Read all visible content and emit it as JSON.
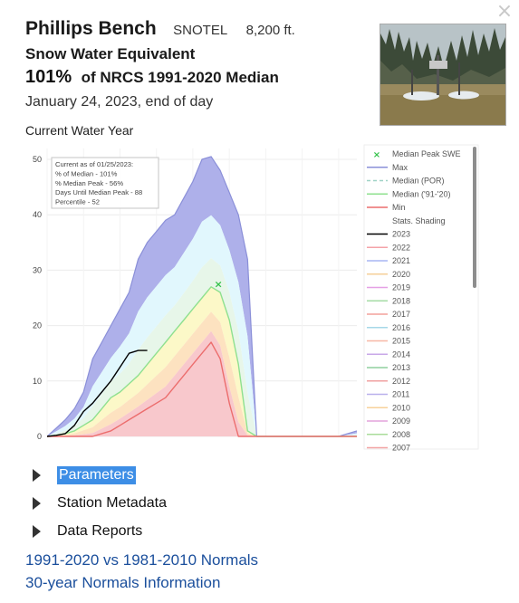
{
  "header": {
    "station_name": "Phillips Bench",
    "network": "SNOTEL",
    "elevation": "8,200 ft.",
    "metric": "Snow Water Equivalent",
    "percent": "101%",
    "percent_text": "of NRCS 1991-2020 Median",
    "date_text": "January 24, 2023, end of day",
    "close_glyph": "×",
    "close_icon": "close-icon"
  },
  "chart_title": "Current Water Year",
  "colors": {
    "max_band": "#aeb0ea",
    "band_cyan": "#e1f7fd",
    "band_green": "#e7f6e9",
    "band_yellow": "#fcf8c8",
    "band_orange": "#fde2c0",
    "band_red": "#f8c8cc",
    "max_line": "#8a8fd8",
    "median_line": "#8fe08f",
    "min_line": "#ec6d6d",
    "current_line": "#000000",
    "link": "#1b4f9c",
    "selected": "#3d8ee6"
  },
  "chart_data": {
    "type": "area",
    "ylim": [
      0,
      50
    ],
    "yticks": [
      "0",
      "10",
      "20",
      "30",
      "40",
      "50"
    ],
    "x_index_range": [
      0,
      34
    ],
    "series": [
      {
        "name": "Max",
        "values": [
          0,
          1.5,
          3,
          5,
          8,
          14,
          17,
          20,
          23,
          26,
          32,
          35,
          37,
          39,
          40,
          43,
          46,
          50,
          50.5,
          48,
          44,
          40,
          32,
          0,
          0,
          0,
          0,
          0,
          0,
          0,
          0,
          0,
          0,
          0.5,
          1
        ]
      },
      {
        "name": "Median ('91-'20)",
        "values": [
          0,
          0.2,
          0.5,
          1,
          2,
          3,
          5,
          7,
          8,
          9.5,
          11,
          13,
          15,
          17,
          19,
          21,
          23,
          25,
          27,
          26,
          21,
          13,
          1,
          0,
          0,
          0,
          0,
          0,
          0,
          0,
          0,
          0,
          0,
          0,
          0
        ]
      },
      {
        "name": "Min",
        "values": [
          0,
          0,
          0,
          0,
          0,
          0,
          0.5,
          1,
          2,
          3,
          4,
          5,
          6,
          7,
          9,
          11,
          13,
          15,
          17,
          14,
          6,
          0,
          0,
          0,
          0,
          0,
          0,
          0,
          0,
          0,
          0,
          0,
          0,
          0,
          0
        ]
      },
      {
        "name": "2023",
        "values": [
          0,
          0.2,
          0.5,
          2,
          4.5,
          6,
          8,
          10,
          12.5,
          15,
          15.5,
          15.5
        ]
      }
    ],
    "median_peak": {
      "x_index": 18.8,
      "value": 27.5
    },
    "annotation": [
      "Current as of 01/25/2023:",
      "% of Median - 101%",
      "% Median Peak - 56%",
      "Days Until Median Peak - 88",
      "Percentile - 52"
    ],
    "legend": [
      {
        "label": "Median Peak SWE",
        "color": "#34c24a",
        "kind": "x"
      },
      {
        "label": "Max",
        "color": "#8a8fd8",
        "kind": "line"
      },
      {
        "label": "Median (POR)",
        "color": "#9fd3c6",
        "kind": "dash"
      },
      {
        "label": "Median ('91-'20)",
        "color": "#8fe08f",
        "kind": "line"
      },
      {
        "label": "Min",
        "color": "#ec6d6d",
        "kind": "line"
      },
      {
        "label": "Stats. Shading",
        "color": "",
        "kind": "none"
      },
      {
        "label": "2023",
        "color": "#000000",
        "kind": "line"
      },
      {
        "label": "2022",
        "color": "#f4a3a8",
        "kind": "line"
      },
      {
        "label": "2021",
        "color": "#a8b6f4",
        "kind": "line"
      },
      {
        "label": "2020",
        "color": "#f6cf98",
        "kind": "line"
      },
      {
        "label": "2019",
        "color": "#e5a0e5",
        "kind": "line"
      },
      {
        "label": "2018",
        "color": "#a5dca5",
        "kind": "line"
      },
      {
        "label": "2017",
        "color": "#f3a09c",
        "kind": "line"
      },
      {
        "label": "2016",
        "color": "#a6d8e8",
        "kind": "line"
      },
      {
        "label": "2015",
        "color": "#f7b7a6",
        "kind": "line"
      },
      {
        "label": "2014",
        "color": "#c8a8e8",
        "kind": "line"
      },
      {
        "label": "2013",
        "color": "#8fcf9e",
        "kind": "line"
      },
      {
        "label": "2012",
        "color": "#f0a2a2",
        "kind": "line"
      },
      {
        "label": "2011",
        "color": "#b9b0ec",
        "kind": "line"
      },
      {
        "label": "2010",
        "color": "#f7d19a",
        "kind": "line"
      },
      {
        "label": "2009",
        "color": "#e3a3db",
        "kind": "line"
      },
      {
        "label": "2008",
        "color": "#a9dc9a",
        "kind": "line"
      },
      {
        "label": "2007",
        "color": "#f2a3a3",
        "kind": "line"
      }
    ]
  },
  "menu": [
    {
      "label": "Parameters",
      "selected": true
    },
    {
      "label": "Station Metadata",
      "selected": false
    },
    {
      "label": "Data Reports",
      "selected": false
    }
  ],
  "links": {
    "normals_compare": "1991-2020 vs 1981-2010 Normals",
    "normals_info": "30-year Normals Information"
  }
}
